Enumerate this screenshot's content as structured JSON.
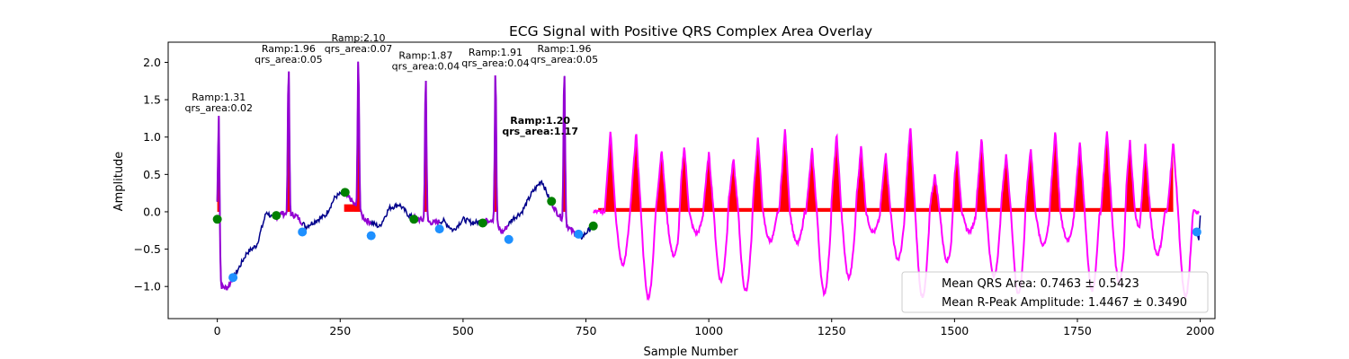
{
  "chart_data": {
    "type": "line",
    "title": "ECG Signal with Positive QRS Complex Area Overlay",
    "xlabel": "Sample Number",
    "ylabel": "Amplitude",
    "xlim": [
      -100,
      2030
    ],
    "ylim": [
      -1.43,
      2.27
    ],
    "xticks": [
      0,
      250,
      500,
      750,
      1000,
      1250,
      1500,
      1750,
      2000
    ],
    "yticks": [
      -1.0,
      -0.5,
      0.0,
      0.5,
      1.0,
      1.5,
      2.0
    ],
    "grid": false,
    "colors": {
      "signal": "#00008b",
      "qrs_segment": "#9400d3",
      "noisy_segment": "#ff00ff",
      "qrs_area_fill": "#ff0000",
      "onset_marker": "#008000",
      "offset_marker": "#1e90ff"
    },
    "beats": [
      {
        "r_x": 3,
        "r_amp": 1.31,
        "qrs_area": 0.02,
        "onset_x": 0,
        "onset_y": -0.1,
        "offset_x": 32,
        "offset_y": -0.88
      },
      {
        "r_x": 145,
        "r_amp": 1.96,
        "qrs_area": 0.05,
        "onset_x": 120,
        "onset_y": -0.05,
        "offset_x": 173,
        "offset_y": -0.27
      },
      {
        "r_x": 287,
        "r_amp": 2.1,
        "qrs_area": 0.07,
        "onset_x": 260,
        "onset_y": 0.26,
        "offset_x": 313,
        "offset_y": -0.32
      },
      {
        "r_x": 424,
        "r_amp": 1.87,
        "qrs_area": 0.04,
        "onset_x": 400,
        "onset_y": -0.1,
        "offset_x": 452,
        "offset_y": -0.23
      },
      {
        "r_x": 566,
        "r_amp": 1.91,
        "qrs_area": 0.04,
        "onset_x": 540,
        "onset_y": -0.15,
        "offset_x": 593,
        "offset_y": -0.37
      },
      {
        "r_x": 706,
        "r_amp": 1.96,
        "qrs_area": 0.05,
        "onset_x": 680,
        "onset_y": 0.14,
        "offset_x": 735,
        "offset_y": -0.3
      }
    ],
    "long_qrs": {
      "onset_x": 765,
      "onset_y": -0.19,
      "offset_x": 1993,
      "offset_y": -0.27,
      "r_amp": 1.2,
      "qrs_area": 1.17
    },
    "noisy_peaks": [
      {
        "x": 800,
        "y": 1.12
      },
      {
        "x": 852,
        "y": 1.08
      },
      {
        "x": 904,
        "y": 0.85
      },
      {
        "x": 950,
        "y": 0.9
      },
      {
        "x": 1000,
        "y": 0.8
      },
      {
        "x": 1050,
        "y": 0.72
      },
      {
        "x": 1100,
        "y": 1.02
      },
      {
        "x": 1155,
        "y": 1.12
      },
      {
        "x": 1210,
        "y": 0.85
      },
      {
        "x": 1260,
        "y": 1.05
      },
      {
        "x": 1310,
        "y": 0.9
      },
      {
        "x": 1360,
        "y": 0.8
      },
      {
        "x": 1410,
        "y": 1.18
      },
      {
        "x": 1460,
        "y": 0.5
      },
      {
        "x": 1505,
        "y": 0.82
      },
      {
        "x": 1555,
        "y": 1.0
      },
      {
        "x": 1605,
        "y": 0.78
      },
      {
        "x": 1655,
        "y": 0.88
      },
      {
        "x": 1705,
        "y": 1.12
      },
      {
        "x": 1755,
        "y": 0.95
      },
      {
        "x": 1810,
        "y": 1.12
      },
      {
        "x": 1857,
        "y": 0.95
      },
      {
        "x": 1888,
        "y": 1.15
      },
      {
        "x": 1945,
        "y": 0.95
      }
    ],
    "legend": {
      "placement": "lower right",
      "entries": [
        "Mean QRS Area: 0.7463 ± 0.5423",
        "Mean R-Peak Amplitude: 1.4467 ± 0.3490"
      ]
    },
    "annotation_prefix_ramp": "Ramp:",
    "annotation_prefix_area": "qrs_area:"
  }
}
